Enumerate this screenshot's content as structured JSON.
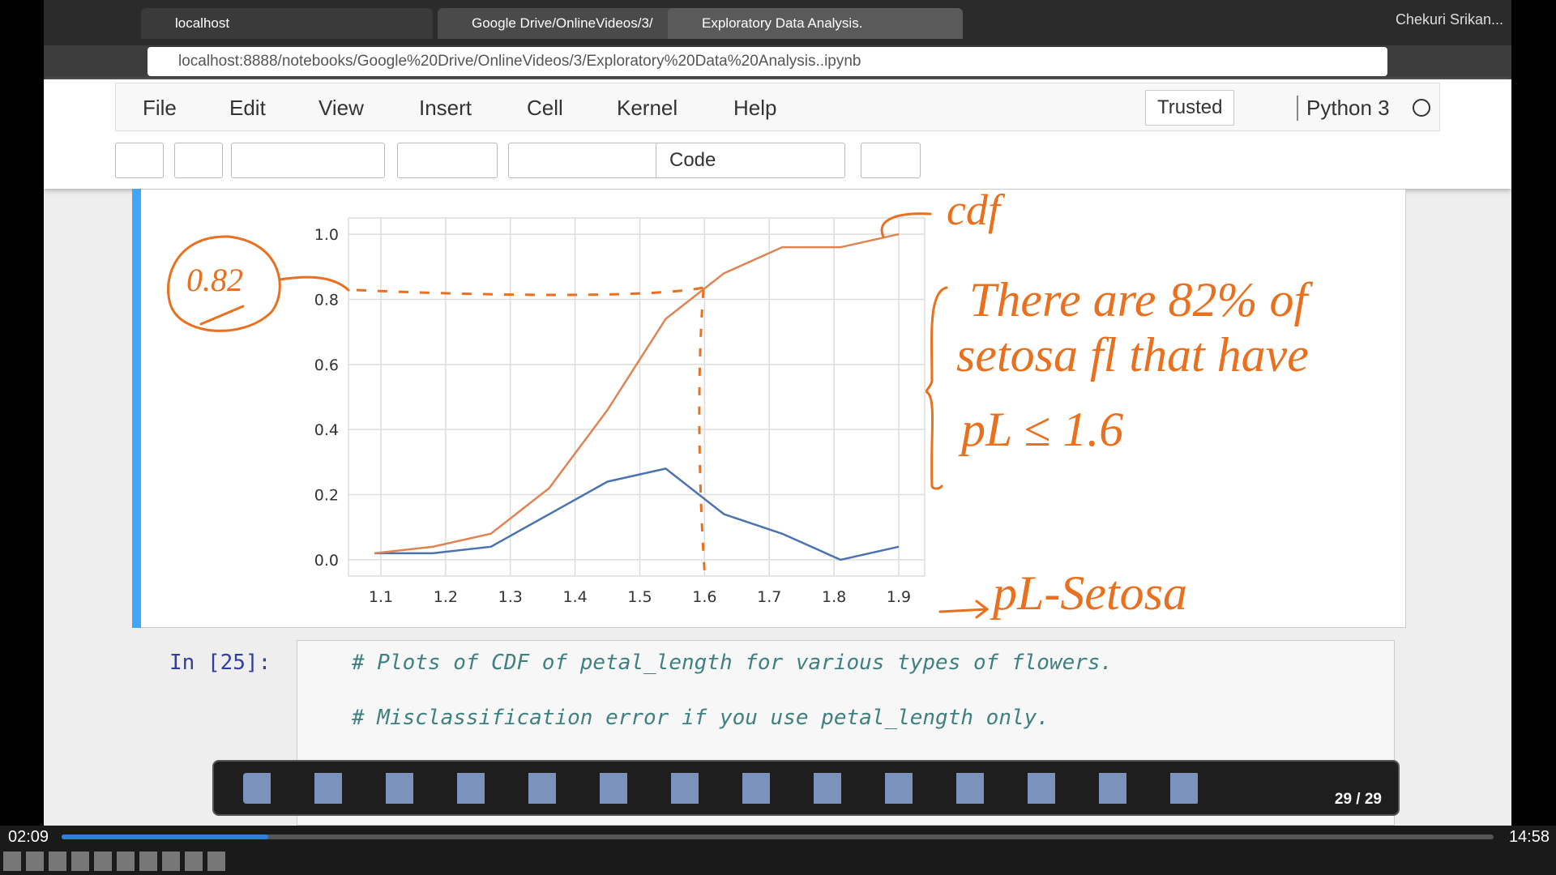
{
  "browser": {
    "tabs": [
      "localhost",
      "Google Drive/OnlineVideos/3/",
      "Exploratory Data Analysis."
    ],
    "user": "Chekuri Srikan...",
    "url": "localhost:8888/notebooks/Google%20Drive/OnlineVideos/3/Exploratory%20Data%20Analysis..ipynb"
  },
  "notebook": {
    "menu": [
      "File",
      "Edit",
      "View",
      "Insert",
      "Cell",
      "Kernel",
      "Help"
    ],
    "trusted": "Trusted",
    "kernel": "Python 3",
    "cell_type": "Code",
    "cell": {
      "prompt": "In [25]:",
      "lines": [
        "# Plots of CDF of petal_length for various types of flowers.",
        "# Misclassification error if you use petal_length only."
      ]
    }
  },
  "chart_data": {
    "type": "line",
    "series": [
      {
        "color": "#4c72b0",
        "x": [
          1.09,
          1.18,
          1.27,
          1.36,
          1.45,
          1.54,
          1.63,
          1.72,
          1.81,
          1.9
        ],
        "values": [
          0.02,
          0.02,
          0.04,
          0.14,
          0.24,
          0.28,
          0.14,
          0.08,
          0.0,
          0.04
        ]
      },
      {
        "color": "#dd8452",
        "x": [
          1.09,
          1.18,
          1.27,
          1.36,
          1.45,
          1.54,
          1.63,
          1.72,
          1.81,
          1.9
        ],
        "values": [
          0.02,
          0.04,
          0.08,
          0.22,
          0.46,
          0.74,
          0.88,
          0.96,
          0.96,
          1.0
        ]
      }
    ],
    "xlim": [
      1.05,
      1.94
    ],
    "ylim": [
      -0.05,
      1.05
    ],
    "xticks": [
      1.1,
      1.2,
      1.3,
      1.4,
      1.5,
      1.6,
      1.7,
      1.8,
      1.9
    ],
    "yticks": [
      {
        "value": 0,
        "label": "0.0"
      },
      0.2,
      0.4,
      0.6,
      0.8,
      {
        "value": 1,
        "label": "1.0"
      }
    ],
    "grid": true
  },
  "handwriting": {
    "circled": "0.82",
    "cdf": "cdf",
    "note": [
      "There are 82% of",
      "setosa fl that have",
      "pL ≤ 1.6"
    ],
    "arrow_note": "pL-Setosa"
  },
  "annotation_toolbar": {
    "page": "29 / 29"
  },
  "player": {
    "elapsed": "02:09",
    "total": "14:58"
  }
}
